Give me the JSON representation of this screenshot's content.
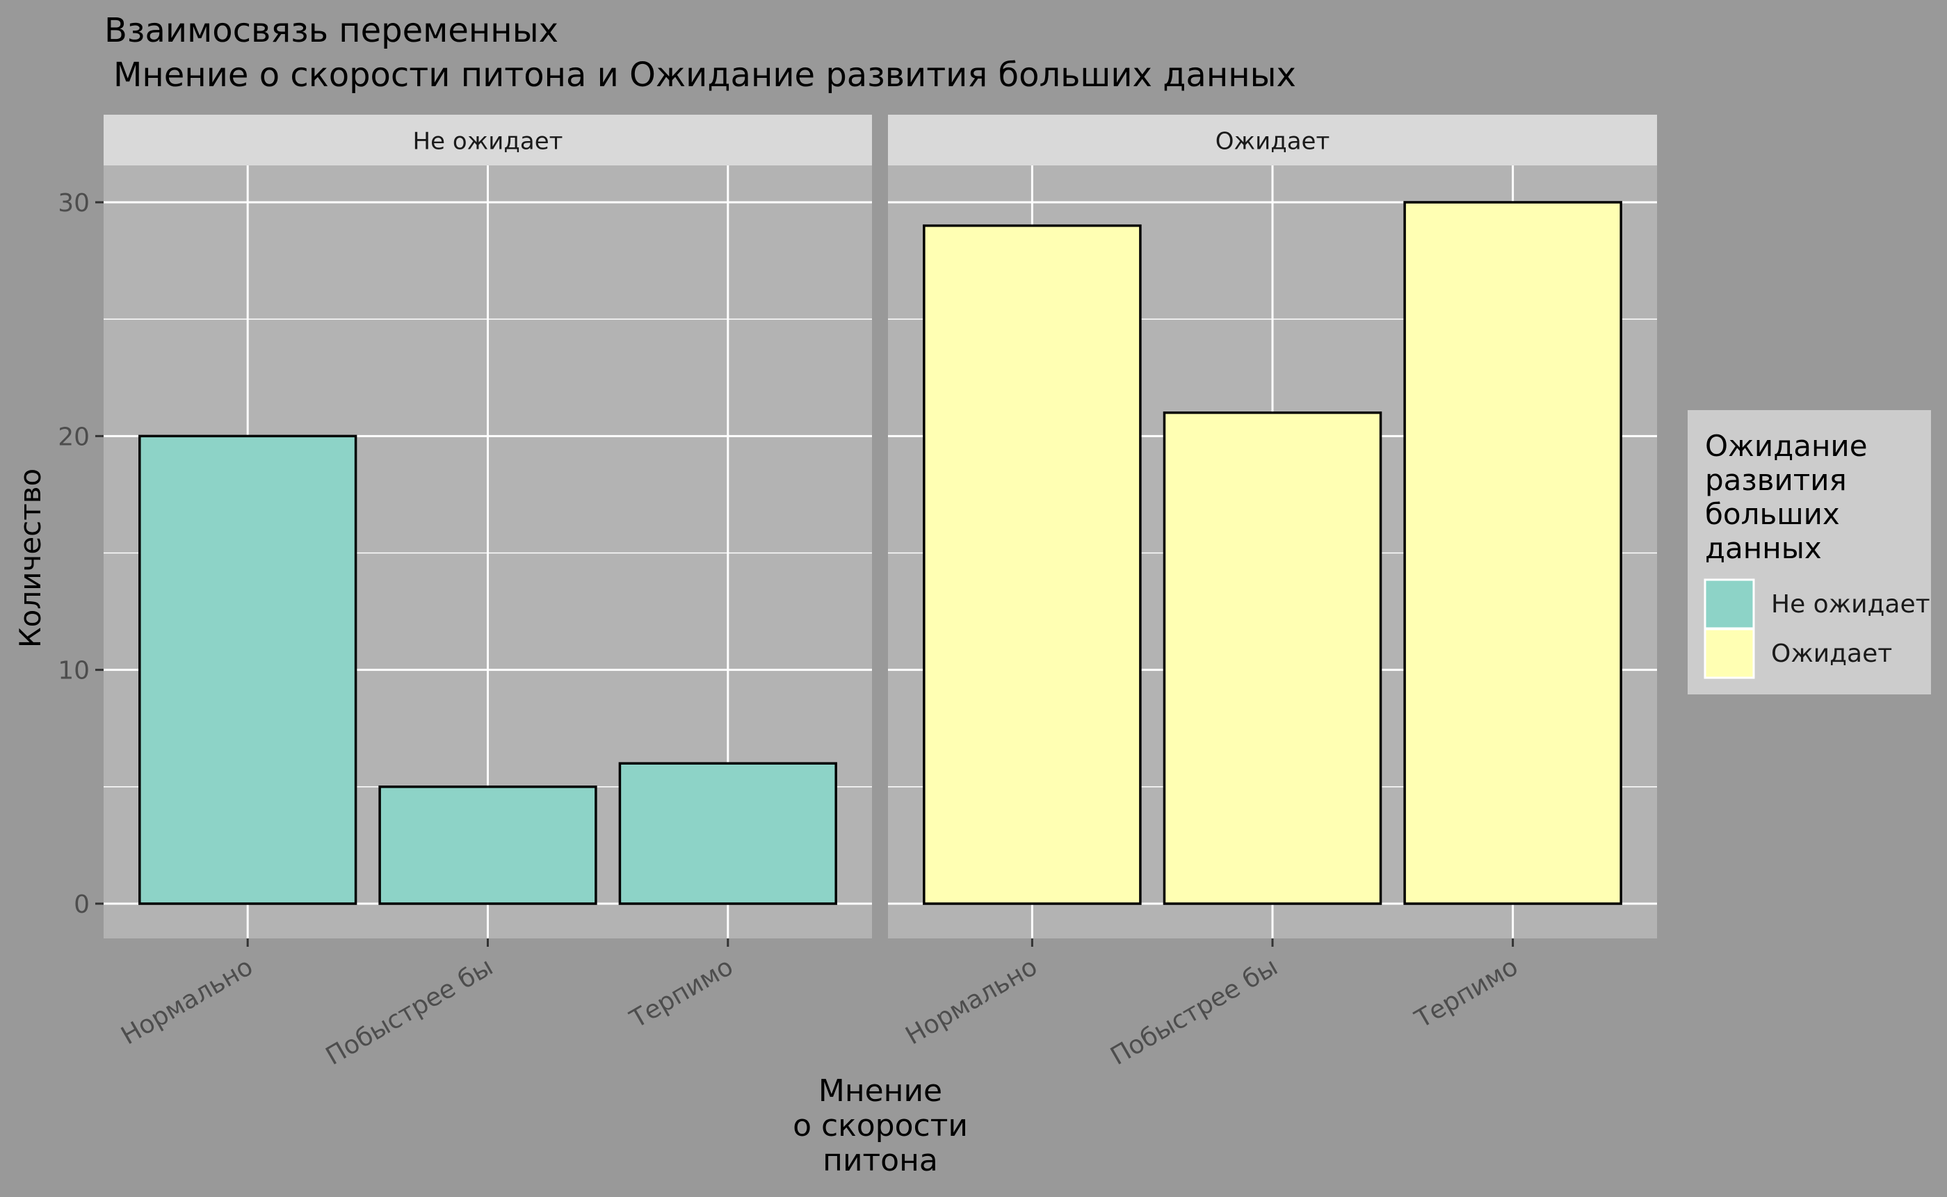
{
  "chart_data": {
    "type": "bar",
    "title_line1": "Взаимосвязь переменных",
    "title_line2": "Мнение о скорости питона и Ожидание развития больших данных",
    "xlabel_lines": [
      "Мнение",
      "о скорости",
      "питона"
    ],
    "ylabel": "Количество",
    "ylim": [
      0,
      30
    ],
    "y_ticks": [
      0,
      10,
      20,
      30
    ],
    "categories": [
      "Нормально",
      "Побыстрее бы",
      "Терпимо"
    ],
    "facets": [
      {
        "label": "Не ожидает",
        "fill_color": "#8DD3C7",
        "values": [
          20,
          5,
          6
        ]
      },
      {
        "label": "Ожидает",
        "fill_color": "#FFFFB3",
        "values": [
          29,
          21,
          30
        ]
      }
    ],
    "legend": {
      "title_lines": [
        "Ожидание",
        "развития",
        "больших",
        "данных"
      ],
      "items": [
        {
          "label": "Не ожидает",
          "color": "#8DD3C7"
        },
        {
          "label": "Ожидает",
          "color": "#FFFFB3"
        }
      ],
      "position": "right"
    },
    "grid": true
  },
  "colors": {
    "plot_background": "#999999",
    "panel_background": "#B3B3B3",
    "strip_background": "#D9D9D9",
    "legend_background": "#CCCCCC",
    "grid": "#FFFFFF"
  }
}
